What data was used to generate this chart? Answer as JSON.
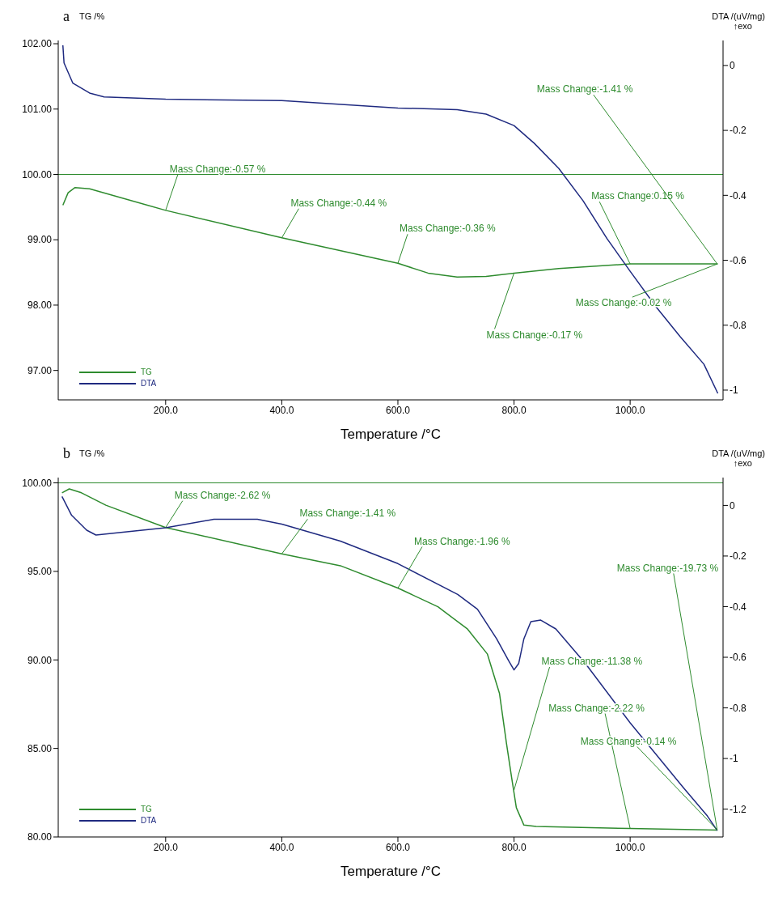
{
  "chart_data": [
    {
      "type": "line",
      "title": "a",
      "xlabel": "Temperature /°C",
      "ylabel": "TG /%",
      "y2label": "DTA /(uV/mg)",
      "xlim": [
        15,
        1160
      ],
      "xticks": [
        {
          "value": 200,
          "label": "200.0"
        },
        {
          "value": 400,
          "label": "400.0"
        },
        {
          "value": 600,
          "label": "600.0"
        },
        {
          "value": 800,
          "label": "800.0"
        },
        {
          "value": 1000,
          "label": "1000.0"
        }
      ],
      "ylim": [
        96.55,
        102.05
      ],
      "yticks": [
        {
          "value": 97,
          "label": "97.00"
        },
        {
          "value": 98,
          "label": "98.00"
        },
        {
          "value": 99,
          "label": "99.00"
        },
        {
          "value": 100,
          "label": "100.00"
        },
        {
          "value": 101,
          "label": "101.00"
        },
        {
          "value": 102,
          "label": "102.00"
        }
      ],
      "y2lim": [
        -1.03,
        0.077
      ],
      "y2ticks": [
        -1,
        -0.8,
        -0.6,
        -0.4,
        -0.2,
        0
      ],
      "legend": "bottom left",
      "grid": false,
      "marker": "none",
      "line_style": "solid",
      "ref_lines": [
        {
          "axis": "y",
          "value": 100,
          "color": "#2e8b2e"
        }
      ],
      "series": [
        {
          "name": "TG",
          "color": "#2e8b2e",
          "x": [
            23,
            32,
            44,
            69,
            200,
            400,
            600,
            652,
            702,
            752,
            800,
            877,
            1000,
            1151
          ],
          "values": [
            99.53,
            99.72,
            99.8,
            99.78,
            99.45,
            99.03,
            98.64,
            98.49,
            98.43,
            98.44,
            98.49,
            98.56,
            98.63,
            98.63
          ]
        },
        {
          "name": "DTA",
          "color": "#1f2a80",
          "axis": "y2",
          "x": [
            23,
            25,
            40,
            69,
            94,
            200,
            400,
            600,
            702,
            752,
            800,
            835,
            877,
            919,
            960,
            1000,
            1044,
            1086,
            1127,
            1151
          ],
          "values": [
            0.062,
            0.008,
            -0.054,
            -0.085,
            -0.097,
            -0.104,
            -0.108,
            -0.131,
            -0.136,
            -0.15,
            -0.185,
            -0.24,
            -0.317,
            -0.417,
            -0.533,
            -0.634,
            -0.742,
            -0.835,
            -0.92,
            -1.01
          ]
        }
      ],
      "annotations": [
        "↑exo",
        {
          "text": "Mass Change:-0.57 %",
          "x": 200,
          "y": 99.45
        },
        {
          "text": "Mass Change:-0.44 %",
          "x": 400,
          "y": 99.03
        },
        {
          "text": "Mass Change:-0.36 %",
          "x": 600,
          "y": 98.64
        },
        {
          "text": "Mass Change:-0.17 %",
          "x": 800,
          "y": 98.49
        },
        {
          "text": "Mass Change:0.15 %",
          "x": 1000,
          "y": 98.63
        },
        {
          "text": "Mass Change:-0.02 %",
          "x": 1150,
          "y": 98.63
        },
        {
          "text": "Mass Change:-1.41 %",
          "x": 1150,
          "y": 98.63
        }
      ]
    },
    {
      "type": "line",
      "title": "b",
      "xlabel": "Temperature /°C",
      "ylabel": "TG /%",
      "y2label": "DTA /(uV/mg)",
      "xlim": [
        15,
        1160
      ],
      "xticks": [
        {
          "value": 200,
          "label": "200.0"
        },
        {
          "value": 400,
          "label": "400.0"
        },
        {
          "value": 600,
          "label": "600.0"
        },
        {
          "value": 800,
          "label": "800.0"
        },
        {
          "value": 1000,
          "label": "1000.0"
        }
      ],
      "ylim": [
        80,
        100.3
      ],
      "yticks": [
        {
          "value": 80,
          "label": "80.00"
        },
        {
          "value": 85,
          "label": "85.00"
        },
        {
          "value": 90,
          "label": "90.00"
        },
        {
          "value": 95,
          "label": "95.00"
        },
        {
          "value": 100,
          "label": "100.00"
        }
      ],
      "y2lim": [
        -1.31,
        0.11
      ],
      "y2ticks": [
        -1.2,
        -1,
        -0.8,
        -0.6,
        -0.4,
        -0.2,
        0
      ],
      "legend": "bottom left",
      "grid": false,
      "marker": "none",
      "line_style": "solid",
      "ref_lines": [
        {
          "axis": "y",
          "value": 100,
          "color": "#2e8b2e"
        }
      ],
      "series": [
        {
          "name": "TG",
          "color": "#2e8b2e",
          "x": [
            21.5,
            34,
            55,
            97,
            200,
            400,
            501,
            600,
            669,
            720,
            754,
            775,
            787,
            796,
            804,
            817,
            838,
            1000,
            1150
          ],
          "values": [
            99.44,
            99.66,
            99.44,
            98.74,
            97.48,
            95.99,
            95.32,
            94.06,
            93.0,
            91.74,
            90.34,
            88.1,
            85.29,
            83.33,
            81.65,
            80.67,
            80.59,
            80.48,
            80.39
          ]
        },
        {
          "name": "DTA",
          "color": "#1f2a80",
          "axis": "y2",
          "x": [
            21.5,
            38,
            64,
            80,
            123,
            200,
            283,
            358,
            400,
            501,
            600,
            703,
            737,
            770,
            791,
            800,
            808,
            817,
            829,
            846,
            872,
            923,
            1000,
            1091,
            1133,
            1150
          ],
          "values": [
            0.035,
            -0.039,
            -0.098,
            -0.117,
            -0.107,
            -0.088,
            -0.055,
            -0.055,
            -0.074,
            -0.141,
            -0.23,
            -0.352,
            -0.41,
            -0.527,
            -0.615,
            -0.65,
            -0.625,
            -0.527,
            -0.459,
            -0.453,
            -0.488,
            -0.625,
            -0.859,
            -1.113,
            -1.227,
            -1.285
          ]
        }
      ],
      "annotations": [
        "↑exo",
        {
          "text": "Mass Change:-2.62 %",
          "x": 200,
          "y": 97.48
        },
        {
          "text": "Mass Change:-1.41 %",
          "x": 400,
          "y": 95.99
        },
        {
          "text": "Mass Change:-1.96 %",
          "x": 600,
          "y": 94.06
        },
        {
          "text": "Mass Change:-11.38 %",
          "x": 800,
          "y": 82.65
        },
        {
          "text": "Mass Change:-2.22 %",
          "x": 1000,
          "y": 80.48
        },
        {
          "text": "Mass Change:-0.14 %",
          "x": 1150,
          "y": 80.39
        },
        {
          "text": "Mass Change:-19.73 %",
          "x": 1150,
          "y": 80.39
        }
      ]
    }
  ]
}
